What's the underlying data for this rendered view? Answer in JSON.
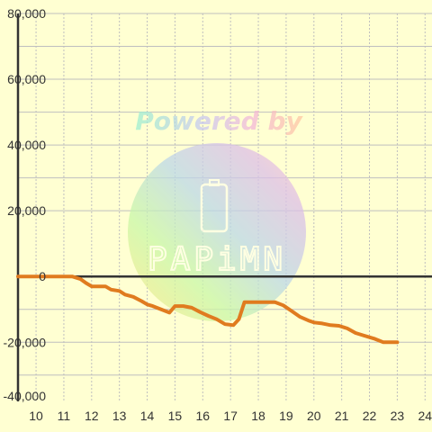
{
  "chart_data": {
    "type": "line",
    "title": "",
    "xlabel": "",
    "ylabel": "",
    "xlim": [
      9.35,
      24.25
    ],
    "ylim": [
      -38000,
      80000
    ],
    "x_ticks": [
      "10",
      "11",
      "12",
      "13",
      "14",
      "15",
      "16",
      "17",
      "18",
      "19",
      "20",
      "21",
      "22",
      "23",
      "24"
    ],
    "y_ticks": [
      "80,000",
      "60,000",
      "40,000",
      "20,000",
      "0",
      "-20,000",
      "-40,000"
    ],
    "grid": true,
    "legend": "none",
    "series": [
      {
        "color": "#e07b1f",
        "x": [
          9.35,
          10,
          10.5,
          11,
          11.3,
          11.6,
          11.8,
          12,
          12.2,
          12.5,
          12.7,
          13,
          13.2,
          13.5,
          13.8,
          14,
          14.2,
          14.5,
          14.8,
          15,
          15.3,
          15.6,
          15.9,
          16.2,
          16.5,
          16.8,
          17.1,
          17.3,
          17.5,
          17.6,
          18,
          18.3,
          18.6,
          18.9,
          19.2,
          19.5,
          19.8,
          20,
          20.3,
          20.6,
          20.9,
          21.2,
          21.5,
          21.8,
          22.2,
          22.5,
          22.8,
          23
        ],
        "y": [
          0,
          0,
          0,
          0,
          0,
          -800,
          -2000,
          -3000,
          -3000,
          -3000,
          -4000,
          -4400,
          -5500,
          -6200,
          -7500,
          -8500,
          -9000,
          -10000,
          -11000,
          -9000,
          -9000,
          -9500,
          -10800,
          -12000,
          -13000,
          -14500,
          -14800,
          -13000,
          -7800,
          -7800,
          -7800,
          -7800,
          -7800,
          -8800,
          -10500,
          -12300,
          -13400,
          -14000,
          -14300,
          -14800,
          -15000,
          -15800,
          -17200,
          -18000,
          -19000,
          -20000,
          -20000,
          -20000
        ]
      }
    ]
  },
  "watermark": {
    "powered_by": "Powered by",
    "brand": "PAPiMN"
  },
  "colors": {
    "background": "#ffffd2",
    "grid": "#bfbfbf",
    "axis": "#333333",
    "line": "#e07b1f"
  }
}
